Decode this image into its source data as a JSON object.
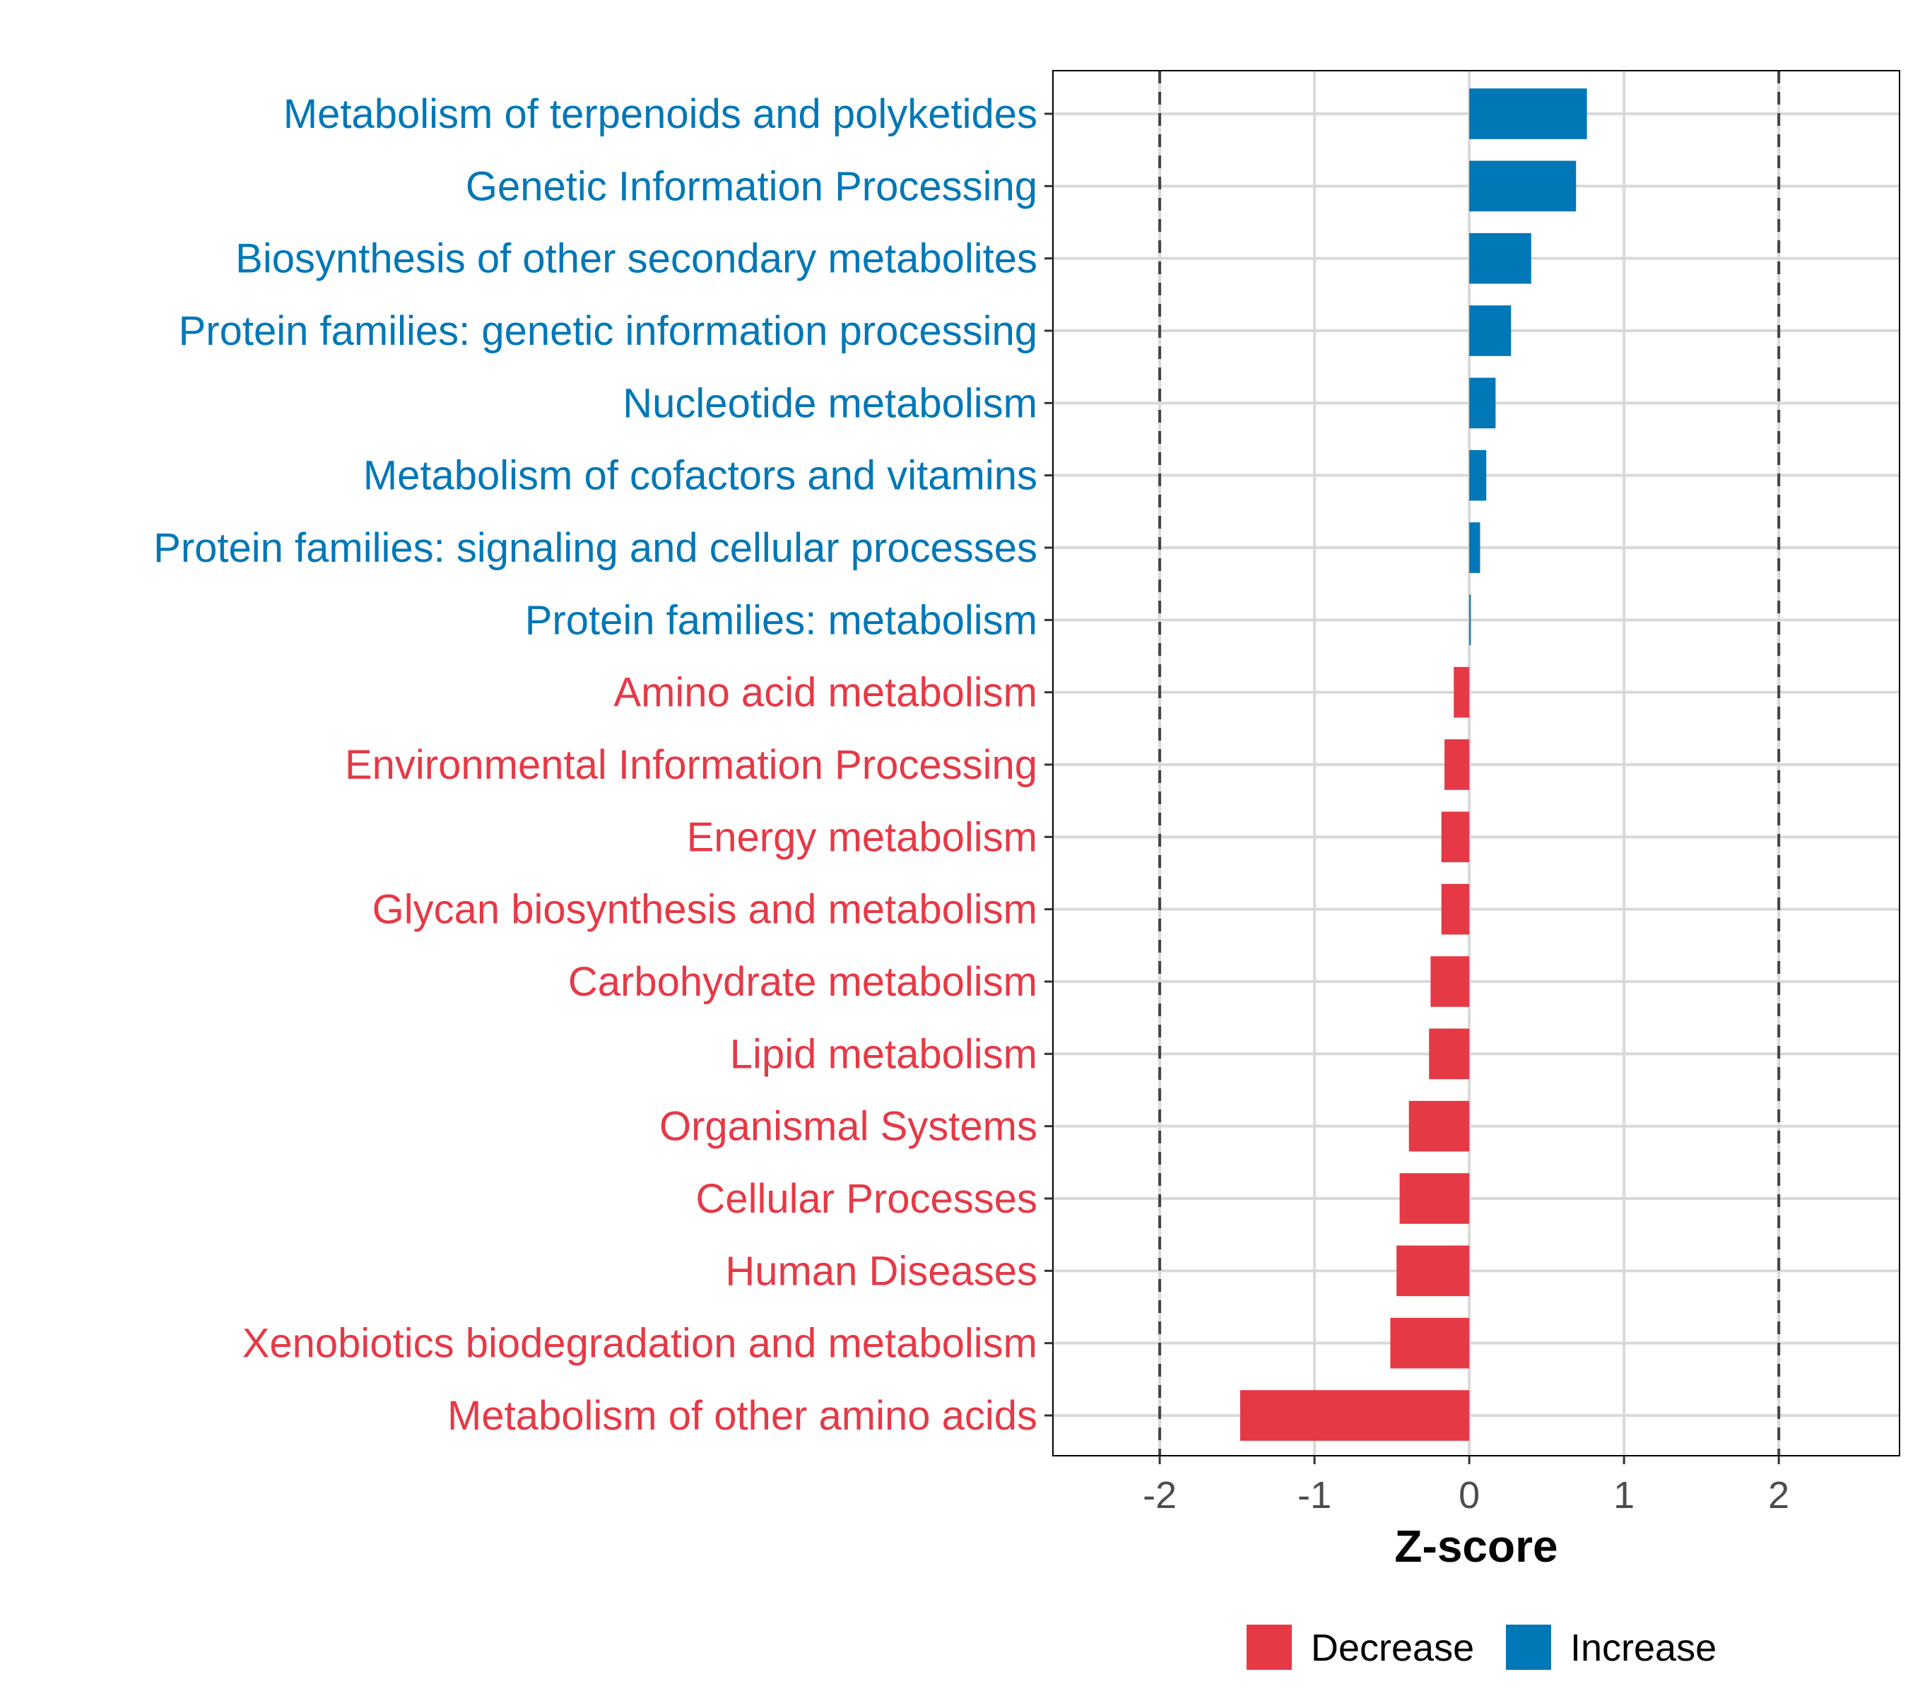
{
  "chart_data": {
    "type": "bar",
    "orientation": "horizontal",
    "title": "",
    "xlabel": "Z-score",
    "ylabel": "",
    "xlim": [
      -2.69,
      2.78
    ],
    "xticks": [
      -2,
      -1,
      0,
      1,
      2
    ],
    "xtick_labels": [
      "-2",
      "-1",
      "0",
      "1",
      "2"
    ],
    "reference_lines": [
      -2,
      2
    ],
    "grid": true,
    "categories": [
      "Metabolism of terpenoids and polyketides",
      "Genetic Information Processing",
      "Biosynthesis of other secondary metabolites",
      "Protein families: genetic information processing",
      "Nucleotide metabolism",
      "Metabolism of cofactors and vitamins",
      "Protein families: signaling and cellular processes",
      "Protein families: metabolism",
      "Amino acid metabolism",
      "Environmental Information Processing",
      "Energy metabolism",
      "Glycan biosynthesis and metabolism",
      "Carbohydrate metabolism",
      "Lipid metabolism",
      "Organismal Systems",
      "Cellular Processes",
      "Human Diseases",
      "Xenobiotics biodegradation and metabolism",
      "Metabolism of other amino acids"
    ],
    "values": [
      0.76,
      0.69,
      0.4,
      0.27,
      0.17,
      0.11,
      0.07,
      0.01,
      -0.1,
      -0.16,
      -0.18,
      -0.18,
      -0.25,
      -0.26,
      -0.39,
      -0.45,
      -0.47,
      -0.51,
      -1.48
    ],
    "legend": {
      "position": "bottom",
      "entries": [
        {
          "label": "Decrease",
          "color": "#E63946"
        },
        {
          "label": "Increase",
          "color": "#0077B6"
        }
      ]
    },
    "colors": {
      "decrease": "#E63946",
      "increase": "#0077B6",
      "grid": "#D9D9D9",
      "refline": "#444444"
    }
  }
}
